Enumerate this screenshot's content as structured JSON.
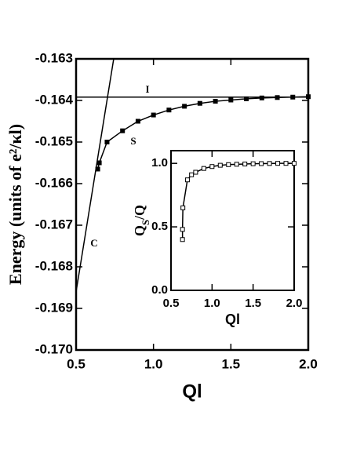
{
  "chart_data": [
    {
      "type": "line",
      "xlabel": "Ql",
      "ylabel": "Energy (units of e²/κl)",
      "xlim": [
        0.5,
        2.0
      ],
      "xticks": [
        0.5,
        {
          "value": 1,
          "label": "1.0"
        },
        1.5,
        {
          "value": 2,
          "label": "2.0"
        }
      ],
      "ylim": [
        -0.17,
        -0.163
      ],
      "yticks": [
        {
          "value": -0.17,
          "label": "-0.170"
        },
        -0.169,
        -0.168,
        -0.167,
        -0.166,
        -0.165,
        -0.164,
        -0.163
      ],
      "series": [
        {
          "name": "S",
          "color": "#000000",
          "marker": "filled-square",
          "x": [
            0.64,
            0.65,
            0.7,
            0.8,
            0.9,
            1.0,
            1.1,
            1.2,
            1.3,
            1.4,
            1.5,
            1.6,
            1.7,
            1.8,
            1.9,
            2.0
          ],
          "values": [
            -0.16565,
            -0.1655,
            -0.165,
            -0.16473,
            -0.1645,
            -0.16435,
            -0.16423,
            -0.16414,
            -0.16407,
            -0.16402,
            -0.16399,
            -0.16396,
            -0.16394,
            -0.16393,
            -0.16392,
            -0.16391
          ]
        },
        {
          "name": "I",
          "color": "#000000",
          "x": [
            0.5,
            2.0
          ],
          "values": [
            -0.16392,
            -0.16392
          ]
        },
        {
          "name": "C",
          "color": "#000000",
          "x": [
            0.5,
            0.743
          ],
          "values": [
            -0.1686,
            -0.163
          ]
        }
      ]
    },
    {
      "type": "line",
      "xlabel": "Ql",
      "ylabel": [
        "Q",
        "S",
        "/Q"
      ],
      "xlim": [
        0.5,
        2.0
      ],
      "xticks": [
        0.5,
        {
          "value": 1,
          "label": "1.0"
        },
        1.5,
        {
          "value": 2,
          "label": "2.0"
        }
      ],
      "ylim": [
        0,
        1.1
      ],
      "yticks": [
        {
          "value": 0,
          "label": "0.0"
        },
        0.5,
        {
          "value": 1,
          "label": "1.0"
        }
      ],
      "series": [
        {
          "color": "#000000",
          "marker": "open-square",
          "x": [
            0.64,
            0.64,
            0.645,
            0.7,
            0.75,
            0.8,
            0.9,
            1.0,
            1.1,
            1.2,
            1.3,
            1.4,
            1.5,
            1.6,
            1.7,
            1.8,
            1.9,
            2.0
          ],
          "values": [
            0.4,
            0.48,
            0.65,
            0.87,
            0.91,
            0.93,
            0.96,
            0.975,
            0.985,
            0.99,
            0.993,
            0.995,
            0.997,
            0.998,
            0.999,
            1.0,
            1.0,
            1.0
          ]
        }
      ]
    }
  ]
}
